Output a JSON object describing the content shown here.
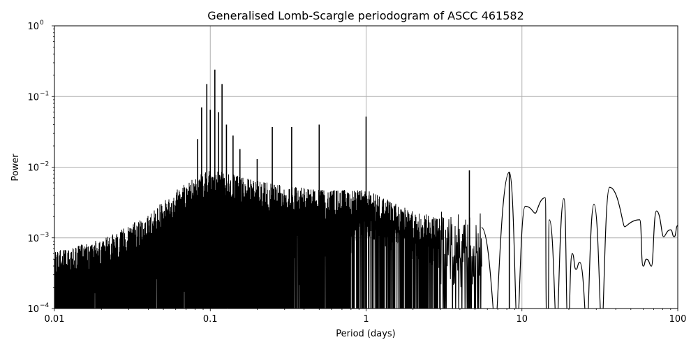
{
  "chart_data": {
    "type": "line",
    "title": "Generalised Lomb-Scargle periodogram of ASCC 461582",
    "xlabel": "Period (days)",
    "ylabel": "Power",
    "xscale": "log",
    "yscale": "log",
    "xlim": [
      0.01,
      100
    ],
    "ylim": [
      0.0001,
      1
    ],
    "grid": true,
    "line_color": "#000000",
    "grid_color": "#b0b0b0",
    "x_ticks": [
      {
        "value": 0.01,
        "label": "0.01"
      },
      {
        "value": 0.1,
        "label": "0.1"
      },
      {
        "value": 1,
        "label": "1"
      },
      {
        "value": 10,
        "label": "10"
      },
      {
        "value": 100,
        "label": "100"
      }
    ],
    "y_ticks": [
      {
        "value": 0.0001,
        "base": "10",
        "exp": "−4"
      },
      {
        "value": 0.001,
        "base": "10",
        "exp": "−3"
      },
      {
        "value": 0.01,
        "base": "10",
        "exp": "−2"
      },
      {
        "value": 0.1,
        "base": "10",
        "exp": "−1"
      },
      {
        "value": 1,
        "base": "10",
        "exp": "0"
      }
    ],
    "prominent_peaks": [
      {
        "period": 0.083,
        "power": 0.025
      },
      {
        "period": 0.088,
        "power": 0.07
      },
      {
        "period": 0.095,
        "power": 0.15
      },
      {
        "period": 0.1,
        "power": 0.065
      },
      {
        "period": 0.107,
        "power": 0.24
      },
      {
        "period": 0.113,
        "power": 0.06
      },
      {
        "period": 0.119,
        "power": 0.15
      },
      {
        "period": 0.127,
        "power": 0.04
      },
      {
        "period": 0.14,
        "power": 0.028
      },
      {
        "period": 0.155,
        "power": 0.018
      },
      {
        "period": 0.2,
        "power": 0.013
      },
      {
        "period": 0.25,
        "power": 0.037
      },
      {
        "period": 0.333,
        "power": 0.037
      },
      {
        "period": 0.5,
        "power": 0.04
      },
      {
        "period": 1.0,
        "power": 0.052
      },
      {
        "period": 4.6,
        "power": 0.009
      },
      {
        "period": 8.3,
        "power": 0.0085
      }
    ],
    "envelope": {
      "description": "Dense noise floor rising from ~3e-4 at 0.01 d to ~5e-3 near 0.1 d, then declining to ~1e-3 around 2-3 d; sparse oscillations beyond.",
      "points": [
        {
          "period": 0.01,
          "power": 0.0004
        },
        {
          "period": 0.02,
          "power": 0.0006
        },
        {
          "period": 0.04,
          "power": 0.0013
        },
        {
          "period": 0.06,
          "power": 0.003
        },
        {
          "period": 0.1,
          "power": 0.006
        },
        {
          "period": 0.2,
          "power": 0.004
        },
        {
          "period": 0.5,
          "power": 0.003
        },
        {
          "period": 1.0,
          "power": 0.003
        },
        {
          "period": 2.0,
          "power": 0.0015
        },
        {
          "period": 3.0,
          "power": 0.0012
        }
      ]
    },
    "long_period_curve": [
      {
        "period": 5.5,
        "power": 0.0014
      },
      {
        "period": 8.3,
        "power": 0.0085
      },
      {
        "period": 10.5,
        "power": 0.0028
      },
      {
        "period": 14.1,
        "power": 0.0037
      },
      {
        "period": 15.0,
        "power": 0.0018
      },
      {
        "period": 18.6,
        "power": 0.0036
      },
      {
        "period": 21.0,
        "power": 0.0006
      },
      {
        "period": 23.5,
        "power": 0.00045
      },
      {
        "period": 29.0,
        "power": 0.003
      },
      {
        "period": 36.5,
        "power": 0.0052
      },
      {
        "period": 57.0,
        "power": 0.0018
      },
      {
        "period": 63.0,
        "power": 0.0005
      },
      {
        "period": 73.0,
        "power": 0.0024
      },
      {
        "period": 90.0,
        "power": 0.0013
      },
      {
        "period": 100.0,
        "power": 0.0015
      }
    ]
  }
}
